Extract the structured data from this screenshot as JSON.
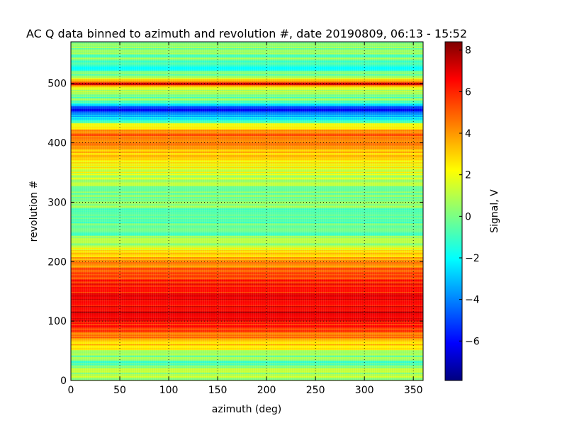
{
  "chart_data": {
    "type": "heatmap",
    "title": "AC Q data binned to azimuth and revolution #, date 20190809, 06:13 - 15:52",
    "xlabel": "azimuth (deg)",
    "ylabel": "revolution #",
    "xlim": [
      0,
      360
    ],
    "ylim": [
      0,
      570
    ],
    "xticks": [
      0,
      50,
      100,
      150,
      200,
      250,
      300,
      350
    ],
    "yticks": [
      0,
      100,
      200,
      300,
      400,
      500
    ],
    "grid": true,
    "colormap": "jet",
    "colorbar": {
      "label": "Signal, V",
      "range": [
        -7.9,
        8.4
      ],
      "ticks": [
        "8",
        "6",
        "4",
        "2",
        "0",
        "−2",
        "−4",
        "−6"
      ]
    },
    "revolution_profile": [
      {
        "revolution": 0,
        "signal": 0.5
      },
      {
        "revolution": 20,
        "signal": 0.8
      },
      {
        "revolution": 30,
        "signal": -0.5
      },
      {
        "revolution": 50,
        "signal": 1.2
      },
      {
        "revolution": 60,
        "signal": 3.0
      },
      {
        "revolution": 80,
        "signal": 4.5
      },
      {
        "revolution": 100,
        "signal": 6.5
      },
      {
        "revolution": 120,
        "signal": 7.0
      },
      {
        "revolution": 140,
        "signal": 6.5
      },
      {
        "revolution": 160,
        "signal": 6.0
      },
      {
        "revolution": 180,
        "signal": 5.0
      },
      {
        "revolution": 195,
        "signal": 4.0
      },
      {
        "revolution": 210,
        "signal": 3.5
      },
      {
        "revolution": 222,
        "signal": 2.0
      },
      {
        "revolution": 235,
        "signal": 0.5
      },
      {
        "revolution": 260,
        "signal": -0.5
      },
      {
        "revolution": 290,
        "signal": 0.0
      },
      {
        "revolution": 320,
        "signal": 0.5
      },
      {
        "revolution": 350,
        "signal": 1.5
      },
      {
        "revolution": 370,
        "signal": 2.5
      },
      {
        "revolution": 390,
        "signal": 4.0
      },
      {
        "revolution": 410,
        "signal": 4.5
      },
      {
        "revolution": 425,
        "signal": 3.5
      },
      {
        "revolution": 440,
        "signal": -1.5
      },
      {
        "revolution": 457,
        "signal": -6.5
      },
      {
        "revolution": 470,
        "signal": 0.0
      },
      {
        "revolution": 490,
        "signal": 0.5
      },
      {
        "revolution": 500,
        "signal": 7.0
      },
      {
        "revolution": 510,
        "signal": 0.5
      },
      {
        "revolution": 525,
        "signal": -1.0
      },
      {
        "revolution": 540,
        "signal": 0.0
      },
      {
        "revolution": 555,
        "signal": 0.5
      },
      {
        "revolution": 570,
        "signal": 0.3
      }
    ]
  }
}
